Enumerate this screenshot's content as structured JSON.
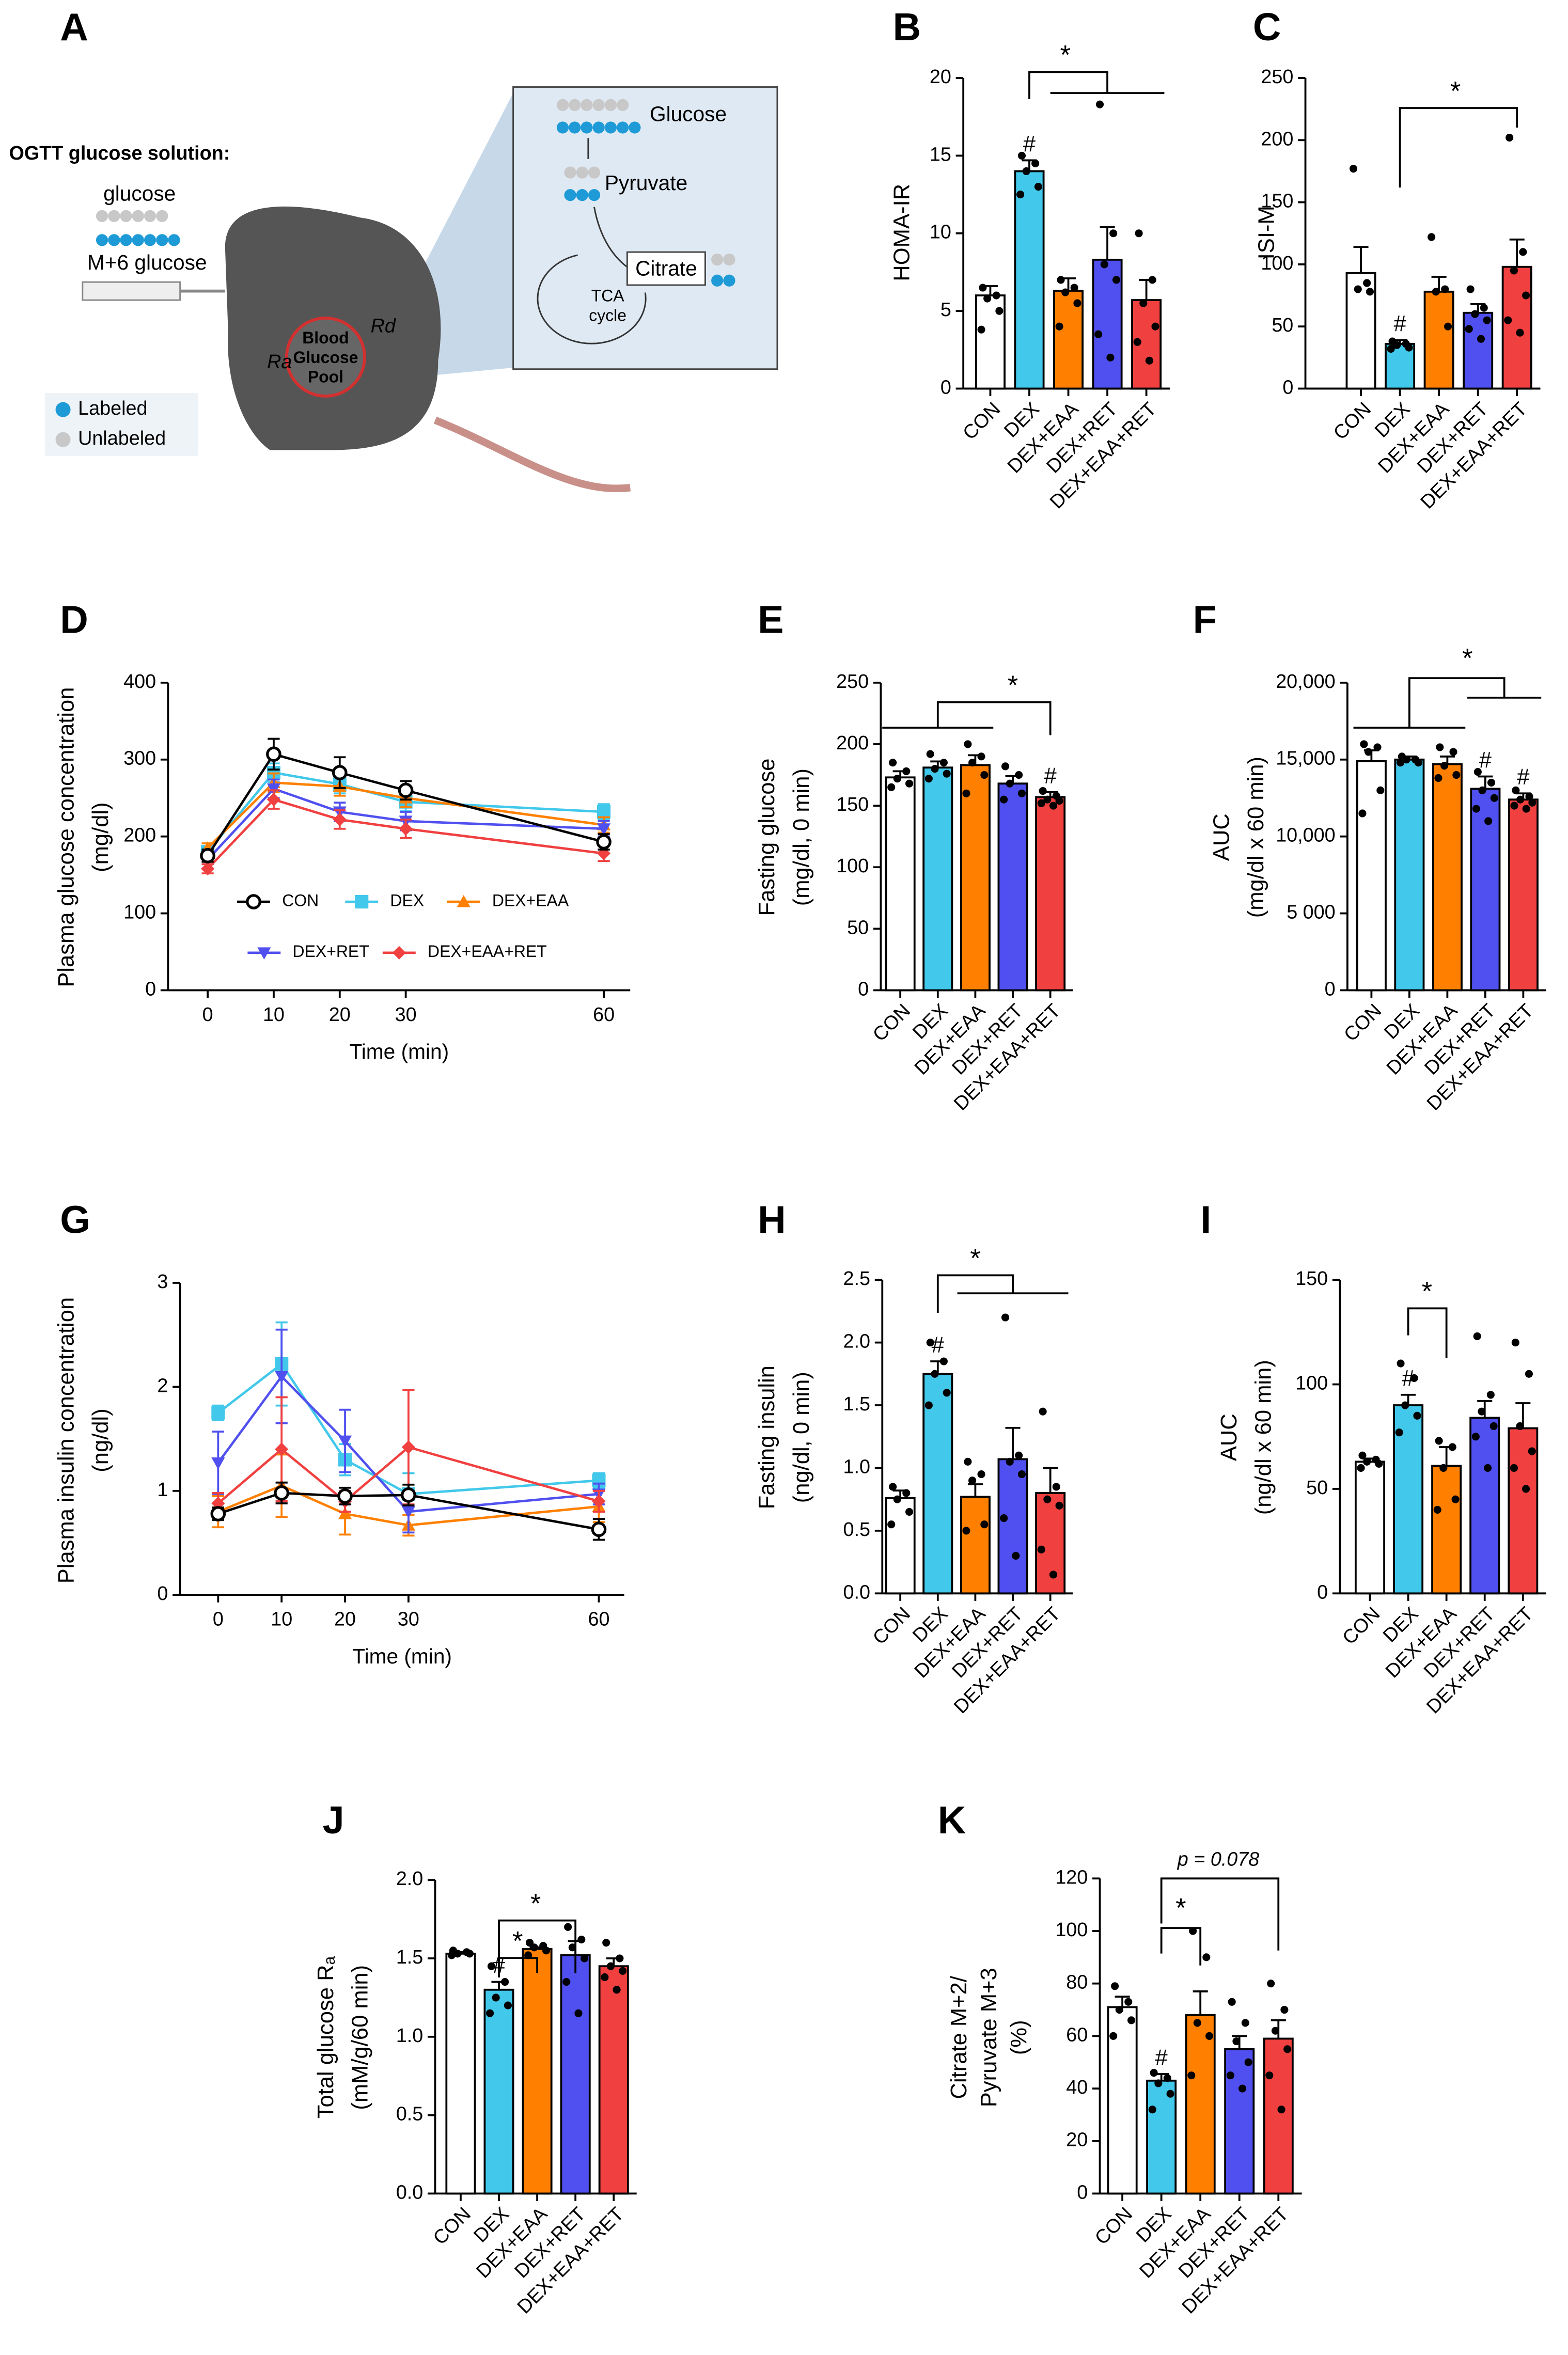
{
  "diagram": {
    "panel": "A",
    "solution": "OGTT glucose solution:",
    "glucose": "glucose",
    "m6": "M+6 glucose",
    "labeled": "Labeled",
    "unlabeled": "Unlabeled",
    "pool": [
      "Blood",
      "Glucose",
      "Pool"
    ],
    "ra": "Ra",
    "rd": "Rd",
    "box_glucose": "Glucose",
    "box_pyruvate": "Pyruvate",
    "box_citrate": "Citrate",
    "tca": [
      "TCA",
      "cycle"
    ]
  },
  "chart_data": [
    {
      "type": "bar",
      "panel": "B",
      "ylabel": [
        "HOMA-IR"
      ],
      "categories": [
        "CON",
        "DEX",
        "DEX+EAA",
        "DEX+RET",
        "DEX+EAA+RET"
      ],
      "colors": [
        "#ffffff",
        "#41c8ea",
        "#ff8000",
        "#5050f0",
        "#f04040"
      ],
      "values": [
        6,
        14,
        6.3,
        8.3,
        5.7
      ],
      "errors": [
        0.6,
        0.7,
        0.8,
        2.1,
        1.3
      ],
      "points": [
        [
          6.5,
          6.0,
          5.8,
          5.0,
          3.8
        ],
        [
          15,
          14.5,
          14,
          13,
          12.5
        ],
        [
          7,
          6.5,
          6.2,
          5.5,
          4
        ],
        [
          18.3,
          10,
          8,
          7,
          3.5,
          2
        ],
        [
          10,
          7,
          5.5,
          4,
          3,
          1.8
        ]
      ],
      "hash_labels": [
        null,
        "#",
        null,
        null,
        null
      ],
      "annotations": [
        "*"
      ],
      "ylim": [
        0,
        20
      ],
      "yticks": [
        0,
        5,
        10,
        15,
        20
      ]
    },
    {
      "type": "bar",
      "panel": "C",
      "ylabel": [
        "ISI-M"
      ],
      "categories": [
        "CON",
        "DEX",
        "DEX+EAA",
        "DEX+RET",
        "DEX+EAA+RET"
      ],
      "colors": [
        "#ffffff",
        "#41c8ea",
        "#ff8000",
        "#5050f0",
        "#f04040"
      ],
      "values": [
        93,
        36,
        78,
        61,
        98
      ],
      "errors": [
        21,
        3,
        12,
        7,
        22
      ],
      "points": [
        [
          177,
          85,
          80,
          78
        ],
        [
          38,
          36,
          35,
          33,
          32
        ],
        [
          122,
          80,
          78,
          50
        ],
        [
          80,
          65,
          60,
          55,
          48,
          40
        ],
        [
          202,
          110,
          95,
          75,
          55,
          45
        ]
      ],
      "hash_labels": [
        null,
        "#",
        null,
        null,
        null
      ],
      "annotations": [
        "*"
      ],
      "ylim": [
        0,
        250
      ],
      "yticks": [
        0,
        50,
        100,
        150,
        200,
        250
      ]
    },
    {
      "type": "line",
      "panel": "D",
      "ylabel": [
        "Plasma glucose concentration",
        "(mg/dl)"
      ],
      "xlabel": "Time (min)",
      "x": [
        0,
        10,
        20,
        30,
        60
      ],
      "xlim": [
        -6,
        64
      ],
      "xticks": [
        0,
        10,
        20,
        30,
        60
      ],
      "ylim": [
        0,
        400
      ],
      "yticks": [
        0,
        100,
        200,
        300,
        400
      ],
      "legend": true,
      "series": [
        {
          "name": "CON",
          "color": "#000000",
          "marker": "circle",
          "values": [
            175,
            307,
            283,
            260,
            193
          ],
          "errors": [
            8,
            20,
            20,
            12,
            10
          ]
        },
        {
          "name": "DEX",
          "color": "#41c8ea",
          "marker": "square",
          "values": [
            180,
            283,
            268,
            245,
            232
          ],
          "errors": [
            6,
            12,
            12,
            12,
            10
          ]
        },
        {
          "name": "DEX+EAA",
          "color": "#ff8000",
          "marker": "triangle",
          "values": [
            185,
            270,
            265,
            250,
            215
          ],
          "errors": [
            6,
            12,
            12,
            12,
            10
          ]
        },
        {
          "name": "DEX+RET",
          "color": "#5050f0",
          "marker": "triangle-down",
          "values": [
            170,
            262,
            232,
            220,
            210
          ],
          "errors": [
            6,
            12,
            12,
            12,
            10
          ]
        },
        {
          "name": "DEX+EAA+RET",
          "color": "#f04040",
          "marker": "diamond",
          "values": [
            158,
            248,
            222,
            210,
            178
          ],
          "errors": [
            6,
            12,
            12,
            12,
            10
          ]
        }
      ]
    },
    {
      "type": "bar",
      "panel": "E",
      "ylabel": [
        "Fasting glucose",
        "(mg/dl, 0 min)"
      ],
      "categories": [
        "CON",
        "DEX",
        "DEX+EAA",
        "DEX+RET",
        "DEX+EAA+RET"
      ],
      "colors": [
        "#ffffff",
        "#41c8ea",
        "#ff8000",
        "#5050f0",
        "#f04040"
      ],
      "values": [
        173,
        181,
        183,
        168,
        157
      ],
      "errors": [
        5,
        5,
        8,
        6,
        4
      ],
      "points": [
        [
          185,
          178,
          172,
          168,
          165
        ],
        [
          192,
          185,
          180,
          176,
          172
        ],
        [
          200,
          190,
          185,
          175,
          160
        ],
        [
          182,
          175,
          168,
          160,
          155
        ],
        [
          162,
          158,
          155,
          154,
          152,
          150
        ]
      ],
      "hash_labels": [
        null,
        null,
        null,
        null,
        "#"
      ],
      "annotations": [
        "*"
      ],
      "ylim": [
        0,
        250
      ],
      "yticks": [
        0,
        50,
        100,
        150,
        200,
        250
      ]
    },
    {
      "type": "bar",
      "panel": "F",
      "ylabel": [
        "AUC",
        "(mg/dl x 60 min)"
      ],
      "categories": [
        "CON",
        "DEX",
        "DEX+EAA",
        "DEX+RET",
        "DEX+EAA+RET"
      ],
      "colors": [
        "#ffffff",
        "#41c8ea",
        "#ff8000",
        "#5050f0",
        "#f04040"
      ],
      "values": [
        14900,
        15000,
        14700,
        13100,
        12400
      ],
      "errors": [
        700,
        200,
        500,
        800,
        400
      ],
      "points": [
        [
          16000,
          15800,
          15500,
          13000,
          11500
        ],
        [
          15200,
          15000,
          15000,
          14800,
          14800
        ],
        [
          15800,
          15500,
          14600,
          14000,
          13800
        ],
        [
          14200,
          13500,
          13000,
          12500,
          11800,
          11000
        ],
        [
          13000,
          12600,
          12400,
          12200,
          12000,
          11800
        ]
      ],
      "hash_labels": [
        null,
        null,
        null,
        "#",
        "#"
      ],
      "annotations": [
        "*"
      ],
      "ylim": [
        0,
        20000
      ],
      "yticks": [
        0,
        {
          "value": 5000,
          "label": "5 000"
        },
        {
          "value": 10000,
          "label": "10,000"
        },
        {
          "value": 15000,
          "label": "15,000"
        },
        {
          "value": 20000,
          "label": "20,000"
        }
      ]
    },
    {
      "type": "line",
      "panel": "G",
      "ylabel": [
        "Plasma insulin concentration",
        "(ng/dl)"
      ],
      "xlabel": "Time (min)",
      "x": [
        0,
        10,
        20,
        30,
        60
      ],
      "xlim": [
        -6,
        64
      ],
      "xticks": [
        0,
        10,
        20,
        30,
        60
      ],
      "ylim": [
        0,
        3
      ],
      "yticks": [
        0,
        1,
        2,
        3
      ],
      "legend": false,
      "series": [
        {
          "name": "CON",
          "color": "#000000",
          "marker": "circle",
          "values": [
            0.78,
            0.98,
            0.95,
            0.96,
            0.63
          ],
          "errors": [
            0.06,
            0.1,
            0.08,
            0.1,
            0.1
          ]
        },
        {
          "name": "DEX",
          "color": "#41c8ea",
          "marker": "square",
          "values": [
            1.75,
            2.22,
            1.3,
            0.97,
            1.1
          ],
          "errors": [
            0.07,
            0.4,
            0.15,
            0.2,
            0.07
          ]
        },
        {
          "name": "DEX+EAA",
          "color": "#ff8000",
          "marker": "triangle",
          "values": [
            0.8,
            1.05,
            0.78,
            0.67,
            0.85
          ],
          "errors": [
            0.15,
            0.3,
            0.2,
            0.1,
            0.15
          ]
        },
        {
          "name": "DEX+RET",
          "color": "#5050f0",
          "marker": "triangle-down",
          "values": [
            1.27,
            2.1,
            1.48,
            0.8,
            0.97
          ],
          "errors": [
            0.3,
            0.45,
            0.3,
            0.2,
            0.1
          ]
        },
        {
          "name": "DEX+EAA+RET",
          "color": "#f04040",
          "marker": "diamond",
          "values": [
            0.88,
            1.4,
            0.9,
            1.42,
            0.9
          ],
          "errors": [
            0.1,
            0.5,
            0.1,
            0.55,
            0.1
          ]
        }
      ]
    },
    {
      "type": "bar",
      "panel": "H",
      "ylabel": [
        "Fasting insulin",
        "(ng/dl, 0 min)"
      ],
      "categories": [
        "CON",
        "DEX",
        "DEX+EAA",
        "DEX+RET",
        "DEX+EAA+RET"
      ],
      "colors": [
        "#ffffff",
        "#41c8ea",
        "#ff8000",
        "#5050f0",
        "#f04040"
      ],
      "values": [
        0.76,
        1.75,
        0.77,
        1.07,
        0.8
      ],
      "errors": [
        0.06,
        0.1,
        0.1,
        0.25,
        0.2
      ],
      "points": [
        [
          0.85,
          0.8,
          0.75,
          0.65,
          0.55
        ],
        [
          2.0,
          1.85,
          1.75,
          1.6,
          1.5
        ],
        [
          1.05,
          0.95,
          0.9,
          0.55,
          0.5
        ],
        [
          2.2,
          1.1,
          1.05,
          0.95,
          0.6,
          0.3
        ],
        [
          1.45,
          0.85,
          0.75,
          0.7,
          0.35,
          0.15
        ]
      ],
      "hash_labels": [
        null,
        "#",
        null,
        null,
        null
      ],
      "annotations": [
        "*"
      ],
      "ylim": [
        0,
        2.5
      ],
      "yticks": [
        {
          "value": 0,
          "label": "0.0"
        },
        0.5,
        {
          "value": 1,
          "label": "1.0"
        },
        1.5,
        {
          "value": 2,
          "label": "2.0"
        },
        2.5
      ]
    },
    {
      "type": "bar",
      "panel": "I",
      "ylabel": [
        "AUC",
        "(ng/dl x 60 min)"
      ],
      "categories": [
        "CON",
        "DEX",
        "DEX+EAA",
        "DEX+RET",
        "DEX+EAA+RET"
      ],
      "colors": [
        "#ffffff",
        "#41c8ea",
        "#ff8000",
        "#5050f0",
        "#f04040"
      ],
      "values": [
        63,
        90,
        61,
        84,
        79
      ],
      "errors": [
        1.5,
        5,
        9,
        8,
        12
      ],
      "points": [
        [
          66,
          64,
          63,
          62,
          60
        ],
        [
          110,
          103,
          90,
          85,
          77
        ],
        [
          73,
          70,
          60,
          45,
          40
        ],
        [
          123,
          95,
          87,
          80,
          75,
          60
        ],
        [
          120,
          105,
          80,
          68,
          60,
          50
        ]
      ],
      "hash_labels": [
        null,
        "#",
        null,
        null,
        null
      ],
      "annotations": [
        "*"
      ],
      "ylim": [
        0,
        150
      ],
      "yticks": [
        0,
        50,
        100,
        150
      ]
    },
    {
      "type": "bar",
      "panel": "J",
      "ylabel": [
        "Total glucose Rₐ",
        "(mM/g/60 min)"
      ],
      "categories": [
        "CON",
        "DEX",
        "DEX+EAA",
        "DEX+RET",
        "DEX+EAA+RET"
      ],
      "colors": [
        "#ffffff",
        "#41c8ea",
        "#ff8000",
        "#5050f0",
        "#f04040"
      ],
      "values": [
        1.53,
        1.3,
        1.56,
        1.52,
        1.45
      ],
      "errors": [
        0.01,
        0.05,
        0.01,
        0.09,
        0.05
      ],
      "points": [
        [
          1.55,
          1.54,
          1.53,
          1.53,
          1.52
        ],
        [
          1.45,
          1.35,
          1.25,
          1.2,
          1.15
        ],
        [
          1.6,
          1.58,
          1.57,
          1.55,
          1.52
        ],
        [
          1.7,
          1.62,
          1.57,
          1.5,
          1.35,
          1.15
        ],
        [
          1.6,
          1.5,
          1.45,
          1.42,
          1.38,
          1.3
        ]
      ],
      "hash_labels": [
        null,
        "#",
        null,
        null,
        null
      ],
      "annotations": [
        "*",
        "*"
      ],
      "ylim": [
        0,
        2
      ],
      "yticks": [
        {
          "value": 0,
          "label": "0.0"
        },
        0.5,
        {
          "value": 1,
          "label": "1.0"
        },
        1.5,
        {
          "value": 2,
          "label": "2.0"
        }
      ]
    },
    {
      "type": "bar",
      "panel": "K",
      "ylabel": [
        "Citrate M+2/",
        "Pyruvate M+3",
        "(%)"
      ],
      "categories": [
        "CON",
        "DEX",
        "DEX+EAA",
        "DEX+RET",
        "DEX+EAA+RET"
      ],
      "colors": [
        "#ffffff",
        "#41c8ea",
        "#ff8000",
        "#5050f0",
        "#f04040"
      ],
      "values": [
        71,
        43,
        68,
        55,
        59
      ],
      "errors": [
        4,
        2.5,
        9,
        5,
        7
      ],
      "points": [
        [
          79,
          73,
          70,
          66,
          60
        ],
        [
          46,
          44,
          42,
          38,
          32
        ],
        [
          100,
          90,
          65,
          60,
          45
        ],
        [
          73,
          65,
          58,
          50,
          45,
          40
        ],
        [
          80,
          70,
          62,
          55,
          45,
          32
        ]
      ],
      "hash_labels": [
        null,
        "#",
        null,
        null,
        null
      ],
      "annotations": [
        "*",
        "p = 0.078"
      ],
      "ylim": [
        0,
        120
      ],
      "yticks": [
        0,
        20,
        40,
        60,
        80,
        100,
        120
      ]
    }
  ]
}
